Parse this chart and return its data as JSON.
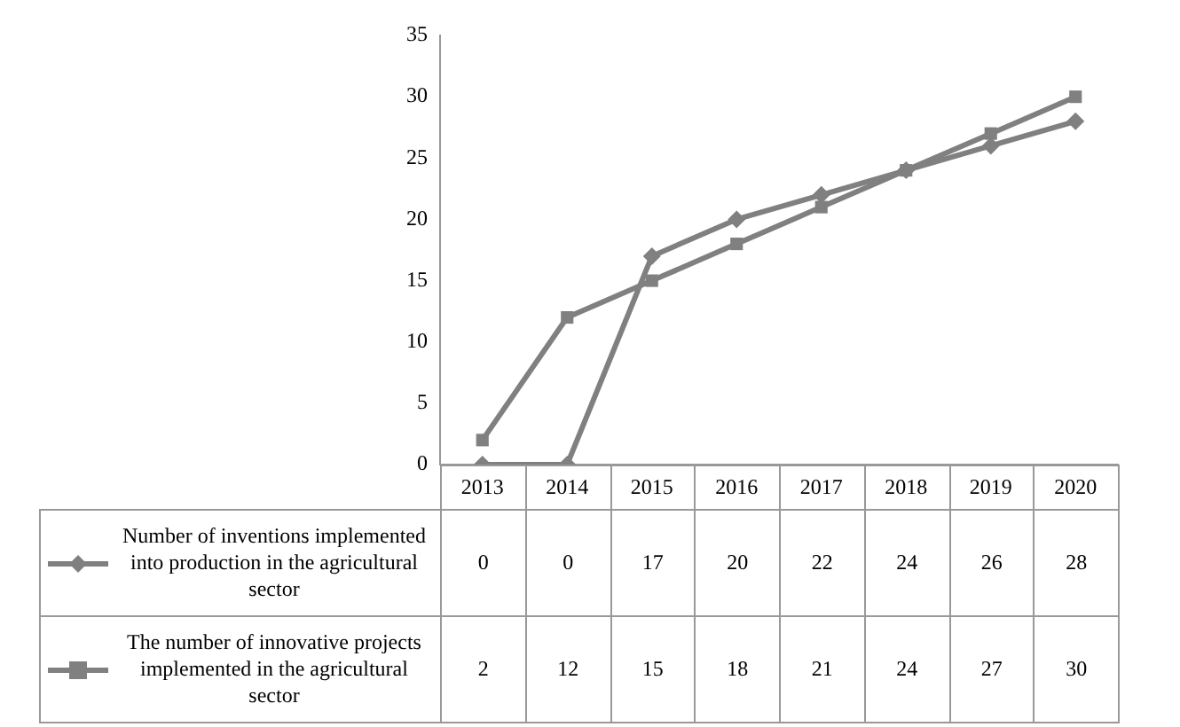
{
  "chart_data": {
    "type": "line",
    "categories": [
      "2013",
      "2014",
      "2015",
      "2016",
      "2017",
      "2018",
      "2019",
      "2020"
    ],
    "series": [
      {
        "name": "Number of inventions implemented into production in the agricultural sector",
        "color": "#808080",
        "marker": "diamond",
        "values": [
          0,
          0,
          17,
          20,
          22,
          24,
          26,
          28
        ]
      },
      {
        "name": "The number of innovative projects implemented in the agricultural sector",
        "color": "#808080",
        "marker": "square",
        "values": [
          2,
          12,
          15,
          18,
          21,
          24,
          27,
          30
        ]
      }
    ],
    "ylim": [
      0,
      35
    ],
    "yticks": [
      0,
      5,
      10,
      15,
      20,
      25,
      30,
      35
    ],
    "grid": false,
    "legend": "bottom",
    "data_labels": true,
    "line_style": "solid"
  }
}
